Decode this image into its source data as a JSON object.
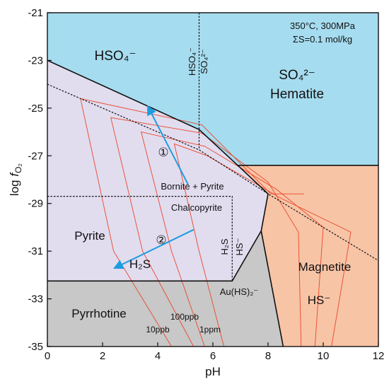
{
  "chart_data": {
    "type": "phase-diagram",
    "title": "",
    "conditions": {
      "temp_pressure": "350°C, 300MPa",
      "sulfur": "ΣS=0.1 mol/kg"
    },
    "xlabel": "pH",
    "ylabel": "log fO2",
    "xlim": [
      0,
      12
    ],
    "ylim": [
      -35,
      -21
    ],
    "xticks": [
      0,
      2,
      4,
      6,
      8,
      10,
      12
    ],
    "yticks": [
      -35,
      -33,
      -31,
      -29,
      -27,
      -25,
      -23,
      -21
    ],
    "colors": {
      "sulfate": "#a6dcef",
      "pyrite": "#e2dcef",
      "pyrrhotine": "#c8c8c8",
      "magnetite": "#f8c4a6",
      "isopleth": "#e8472a",
      "arrow": "#1b9de0"
    },
    "regions": [
      {
        "label": "HSO4-",
        "text": "HSO₄⁻",
        "color": "sulfate",
        "polygon": [
          [
            0,
            -21
          ],
          [
            5.5,
            -21
          ],
          [
            5.5,
            -25.9
          ],
          [
            0,
            -23
          ]
        ]
      },
      {
        "label": "SO42- Hematite",
        "line1": "SO₄²⁻",
        "line2": "Hematite",
        "color": "sulfate",
        "polygon": [
          [
            5.5,
            -21
          ],
          [
            12,
            -21
          ],
          [
            12,
            -27.4
          ],
          [
            6.9,
            -27.4
          ],
          [
            5.5,
            -25.9
          ]
        ]
      },
      {
        "label": "Pyrite",
        "text": "Pyrite",
        "color": "pyrite",
        "polygon": [
          [
            0,
            -23
          ],
          [
            5.5,
            -25.9
          ],
          [
            6.9,
            -27.4
          ],
          [
            8.0,
            -28.6
          ],
          [
            7.75,
            -30.15
          ],
          [
            6.7,
            -32.25
          ],
          [
            0,
            -32.25
          ]
        ]
      },
      {
        "label": "Pyrrhotine",
        "text": "Pyrrhotine",
        "color": "pyrrhotine",
        "polygon": [
          [
            0,
            -32.25
          ],
          [
            6.7,
            -32.25
          ],
          [
            7.75,
            -30.15
          ],
          [
            8.55,
            -35
          ],
          [
            0,
            -35
          ]
        ]
      },
      {
        "label": "Magnetite",
        "text": "Magnetite",
        "color": "magnetite",
        "polygon": [
          [
            6.9,
            -27.4
          ],
          [
            12,
            -27.4
          ],
          [
            12,
            -35
          ],
          [
            8.55,
            -35
          ],
          [
            7.75,
            -30.15
          ],
          [
            8.0,
            -28.6
          ]
        ]
      }
    ],
    "boundaries": {
      "solid": [
        [
          [
            0,
            -23
          ],
          [
            5.5,
            -25.9
          ],
          [
            6.9,
            -27.4
          ],
          [
            8.0,
            -28.6
          ],
          [
            7.75,
            -30.15
          ],
          [
            6.7,
            -32.25
          ],
          [
            0,
            -32.25
          ]
        ],
        [
          [
            6.9,
            -27.4
          ],
          [
            12,
            -27.4
          ]
        ],
        [
          [
            7.75,
            -30.15
          ],
          [
            8.55,
            -35
          ]
        ]
      ],
      "dashed": [
        [
          [
            5.5,
            -21
          ],
          [
            5.5,
            -26.75
          ]
        ],
        [
          [
            0,
            -24
          ],
          [
            5.5,
            -26.75
          ],
          [
            8.0,
            -28.6
          ],
          [
            12,
            -31.4
          ]
        ],
        [
          [
            0,
            -28.7
          ],
          [
            6.7,
            -28.7
          ],
          [
            6.7,
            -32.25
          ]
        ]
      ]
    },
    "isopleths": [
      {
        "label": "10ppb",
        "text": "10ppb",
        "points": [
          [
            4.5,
            -35
          ],
          [
            2.4,
            -31
          ],
          [
            1.2,
            -24.6
          ],
          [
            5.6,
            -25.7
          ],
          [
            8.1,
            -28.6
          ],
          [
            9.3,
            -28.6
          ]
        ]
      },
      {
        "label": "100ppb",
        "text": "100ppb",
        "points": [
          [
            5.3,
            -35
          ],
          [
            3.45,
            -31
          ],
          [
            2.3,
            -25.4
          ],
          [
            5.6,
            -26.05
          ],
          [
            8.0,
            -28.1
          ],
          [
            9.1,
            -30.2
          ],
          [
            9.2,
            -35
          ]
        ]
      },
      {
        "label": "1ppm",
        "text": "1ppm",
        "points": [
          [
            5.7,
            -35
          ],
          [
            4.5,
            -31
          ],
          [
            3.4,
            -26.0
          ],
          [
            5.7,
            -26.6
          ],
          [
            8.3,
            -28.4
          ],
          [
            10.0,
            -30.0
          ],
          [
            9.7,
            -35
          ]
        ]
      },
      {
        "points": [
          [
            6.4,
            -35
          ],
          [
            5.5,
            -31
          ],
          [
            4.6,
            -26.5
          ],
          [
            5.8,
            -27.0
          ],
          [
            8.5,
            -28.8
          ],
          [
            11.0,
            -30.2
          ],
          [
            10.3,
            -35
          ]
        ]
      }
    ],
    "arrows": [
      {
        "label": "1",
        "text": "①",
        "from": [
          5.1,
          -28.2
        ],
        "to": [
          3.65,
          -24.95
        ]
      },
      {
        "label": "2",
        "text": "②",
        "from": [
          5.3,
          -30.1
        ],
        "to": [
          2.45,
          -31.7
        ]
      }
    ],
    "annotations": [
      {
        "text": "HSO₄⁻",
        "rotated": true
      },
      {
        "text": "SO₄²⁻",
        "rotated": true
      },
      {
        "text": "H₂S",
        "rotated": true
      },
      {
        "text": "HS⁻",
        "rotated": true
      },
      {
        "text": "H₂S"
      },
      {
        "text": "HS⁻"
      },
      {
        "text": "Au(HS)₂⁻"
      },
      {
        "text": "Bornite + Pyrite"
      },
      {
        "text": "Chalcopyrite"
      }
    ]
  }
}
